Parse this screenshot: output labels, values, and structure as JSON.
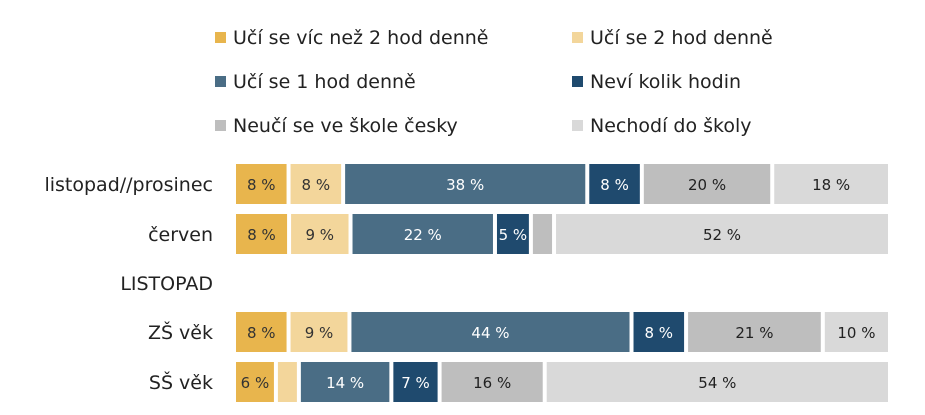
{
  "chart_data": {
    "type": "bar",
    "orientation": "horizontal",
    "stacked": true,
    "normalized": true,
    "categories": [
      "listopad//prosinec",
      "červen",
      "LISTOPAD",
      "ZŠ věk",
      "SŠ věk"
    ],
    "series": [
      {
        "name": "Učí se víc než 2 hod denně",
        "color": "#E8B54D",
        "values": [
          8,
          8,
          null,
          8,
          6
        ]
      },
      {
        "name": "Učí se 2 hod denně",
        "color": "#F3D69B",
        "values": [
          8,
          9,
          null,
          9,
          3
        ]
      },
      {
        "name": "Učí se 1 hod denně",
        "color": "#4A6D85",
        "values": [
          38,
          22,
          null,
          44,
          14
        ]
      },
      {
        "name": "Neví kolik hodin",
        "color": "#1F4A6E",
        "values": [
          8,
          5,
          null,
          8,
          7
        ]
      },
      {
        "name": "Neučí se ve škole česky",
        "color": "#BEBEBE",
        "values": [
          20,
          3,
          null,
          21,
          16
        ]
      },
      {
        "name": "Nechodí do školy",
        "color": "#D9D9D9",
        "values": [
          18,
          52,
          null,
          10,
          54
        ]
      }
    ],
    "data_labels": [
      [
        "8 %",
        "8 %",
        "38 %",
        "8 %",
        "20 %",
        "18 %"
      ],
      [
        "8 %",
        "9 %",
        "22 %",
        "5 %",
        "",
        "52 %"
      ],
      [],
      [
        "8 %",
        "9 %",
        "44 %",
        "8 %",
        "21 %",
        "10 %"
      ],
      [
        "6 %",
        "",
        "14 %",
        "7 %",
        "16 %",
        "54 %"
      ]
    ],
    "label_colors": [
      "#333333",
      "#333333",
      "#ffffff",
      "#ffffff",
      "#222222",
      "#222222"
    ],
    "legend_position": "top",
    "grid": false
  }
}
